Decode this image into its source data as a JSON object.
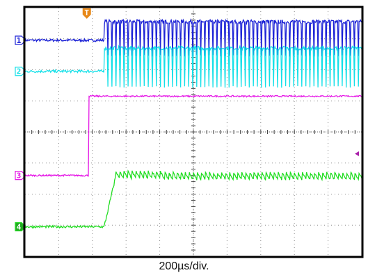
{
  "chart_data": {
    "type": "line",
    "xlabel": "200µs/div.",
    "divisions": {
      "x": 10,
      "y": 8
    },
    "trigger_marker": "T",
    "channels": [
      {
        "id": "1",
        "color": "#1d23d6",
        "marker_fill": "#ffffff",
        "baseline_div": 6.95,
        "high_div": 7.55,
        "edge_div": 2.35,
        "waveform": "pulse-train",
        "pulse_period_div": 0.12,
        "pulse_low_div": 6.45
      },
      {
        "id": "2",
        "color": "#15e0e8",
        "marker_fill": "#ffffff",
        "baseline_div": 5.95,
        "high_div": 6.7,
        "edge_div": 2.35,
        "waveform": "pulse-train",
        "pulse_period_div": 0.12,
        "pulse_low_div": 5.45
      },
      {
        "id": "3",
        "color": "#e619e6",
        "marker_fill": "#ffffff",
        "baseline_div": 2.6,
        "high_div": 5.15,
        "edge_div": 1.9,
        "waveform": "step"
      },
      {
        "id": "4",
        "color": "#22dd22",
        "marker_fill": "#22aa22",
        "baseline_div": 0.95,
        "high_div": 2.6,
        "edge_div": 2.35,
        "ramp_end_div": 2.7,
        "waveform": "sawtooth-ramp",
        "ripple_div": 0.25,
        "ripple_period_div": 0.12
      }
    ],
    "right_marker_color": "#aa22aa",
    "trigger_color": "#e8891a"
  }
}
